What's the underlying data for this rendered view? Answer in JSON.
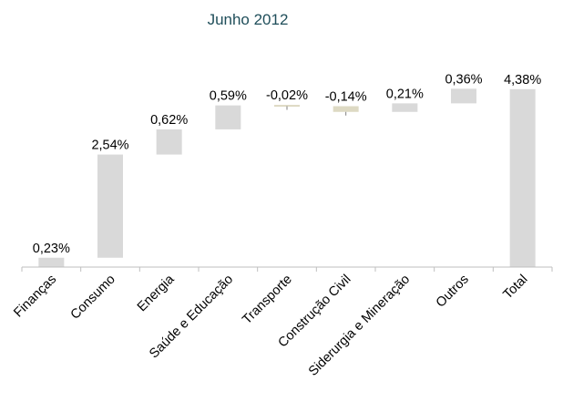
{
  "chart_data": {
    "type": "bar",
    "subtype": "waterfall",
    "title": "Junho 2012",
    "categories": [
      "Finanças",
      "Consumo",
      "Energia",
      "Saúde e Educação",
      "Transporte",
      "Construção Civil",
      "Siderurgia e Mineração",
      "Outros",
      "Total"
    ],
    "values": [
      0.23,
      2.54,
      0.62,
      0.59,
      -0.02,
      -0.14,
      0.21,
      0.36,
      4.38
    ],
    "value_labels": [
      "0,23%",
      "2,54%",
      "0,62%",
      "0,59%",
      "-0,02%",
      "-0,14%",
      "0,21%",
      "0,36%",
      "4,38%"
    ],
    "total_index": 8,
    "ylim": [
      0,
      4.6
    ],
    "y_axis_visible": false,
    "grid": false,
    "legend": "none",
    "xlabel": "",
    "ylabel": "",
    "colors": {
      "increase": "#d9d9d9",
      "decrease": "#ddd9c3",
      "total": "#d9d9d9",
      "axis": "#bfbfbf",
      "title": "#1f4e5a"
    }
  }
}
